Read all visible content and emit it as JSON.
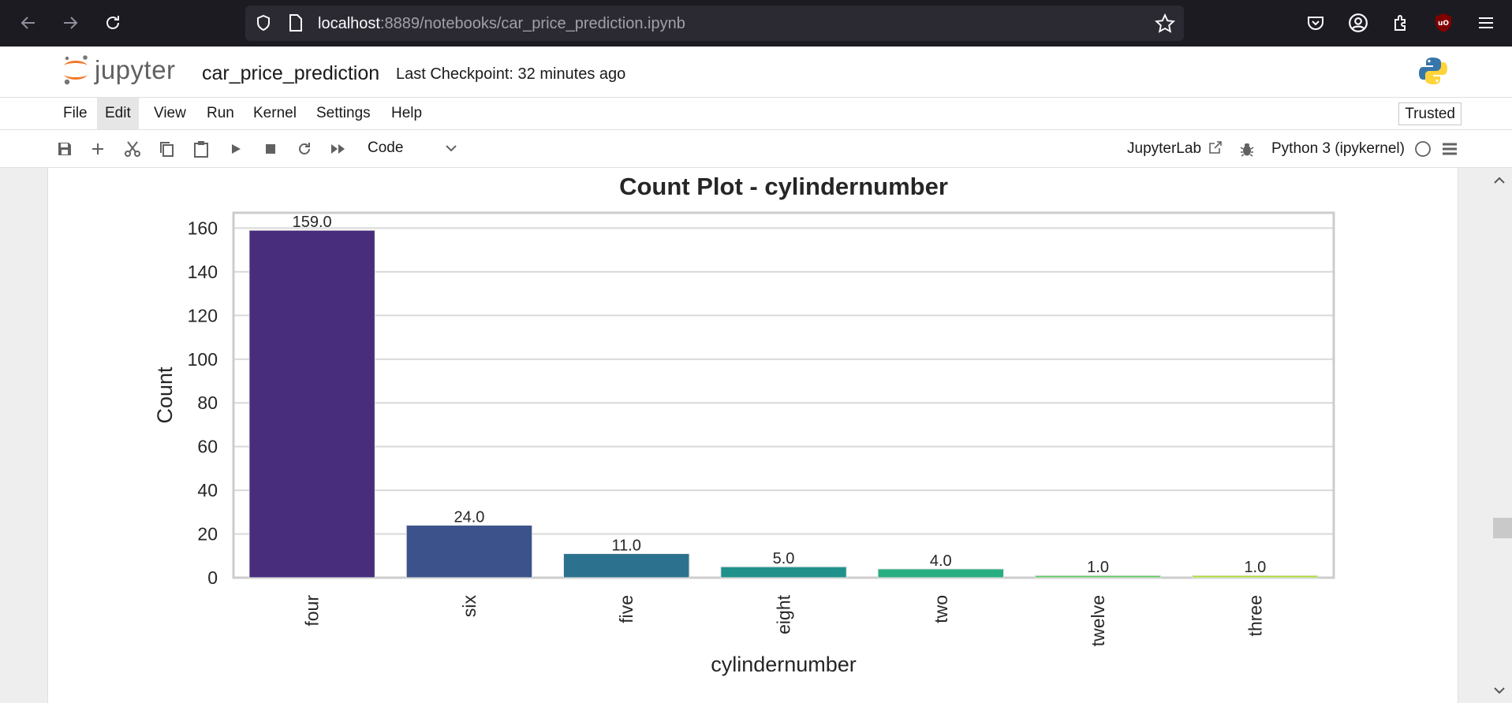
{
  "browser": {
    "url_host": "localhost",
    "url_path": ":8889/notebooks/car_price_prediction.ipynb"
  },
  "header": {
    "logo_text": "jupyter",
    "notebook_title": "car_price_prediction",
    "checkpoint": "Last Checkpoint: 32 minutes ago"
  },
  "menu": {
    "items": [
      {
        "label": "File"
      },
      {
        "label": "Edit"
      },
      {
        "label": "View"
      },
      {
        "label": "Run"
      },
      {
        "label": "Kernel"
      },
      {
        "label": "Settings"
      },
      {
        "label": "Help"
      }
    ],
    "trusted_label": "Trusted"
  },
  "toolbar": {
    "cell_type": "Code",
    "jupyterlab_label": "JupyterLab",
    "kernel": "Python 3 (ipykernel)"
  },
  "colors": {
    "browser_bg": "#1c1b22",
    "url_bg": "#2b2a33",
    "jupyter_orange": "#f37726",
    "ublock_red": "#800000"
  },
  "icons": {
    "browser": [
      "back-arrow-icon",
      "forward-arrow-icon",
      "reload-icon",
      "shield-icon",
      "page-icon",
      "star-icon",
      "pocket-icon",
      "account-icon",
      "extensions-icon",
      "ublock-icon",
      "hamburger-menu-icon"
    ],
    "toolbar": [
      "save-icon",
      "add-icon",
      "cut-icon",
      "copy-icon",
      "paste-icon",
      "run-icon",
      "stop-icon",
      "restart-icon",
      "fast-forward-icon",
      "chevron-down-icon",
      "external-link-icon",
      "bug-icon",
      "kernel-status-circle-icon",
      "list-icon"
    ]
  },
  "chart_data": {
    "type": "bar",
    "title": "Count Plot - cylindernumber",
    "xlabel": "cylindernumber",
    "ylabel": "Count",
    "categories": [
      "four",
      "six",
      "five",
      "eight",
      "two",
      "twelve",
      "three"
    ],
    "values": [
      159,
      24,
      11,
      5,
      4,
      1,
      1
    ],
    "data_labels": [
      "159.0",
      "24.0",
      "11.0",
      "5.0",
      "4.0",
      "1.0",
      "1.0"
    ],
    "yticks": [
      "0",
      "20",
      "40",
      "60",
      "80",
      "100",
      "120",
      "140",
      "160"
    ],
    "ylim": [
      0,
      167
    ],
    "grid": "horizontal",
    "colors": [
      "#472d7b",
      "#3b528b",
      "#2c728e",
      "#21918c",
      "#28ae80",
      "#5ec962",
      "#addc30"
    ]
  }
}
